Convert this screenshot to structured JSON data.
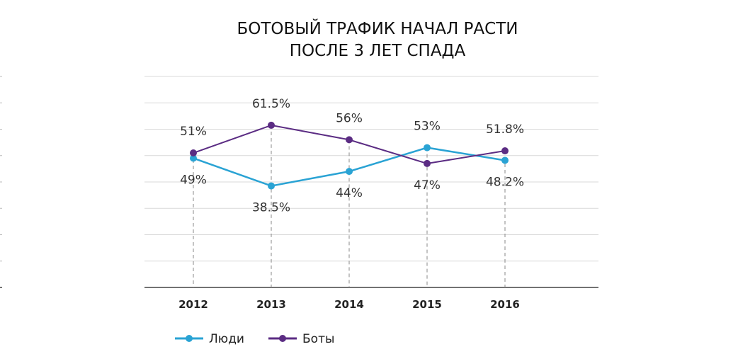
{
  "chart_data": {
    "type": "line",
    "title": [
      "БОТОВЫЙ ТРАФИК НАЧАЛ РАСТИ",
      "ПОСЛЕ 3 ЛЕТ СПАДА"
    ],
    "xlabel": "",
    "ylabel": "",
    "categories": [
      "2012",
      "2013",
      "2014",
      "2015",
      "2016"
    ],
    "ylim": [
      0,
      80
    ],
    "grid": true,
    "legend_placement": "bottom-left",
    "series": [
      {
        "name": "Люди",
        "color": "#2aa3d4",
        "values": [
          49,
          38.5,
          44,
          53,
          48.2
        ],
        "labels": [
          "49%",
          "38.5%",
          "44%",
          "53%",
          "48.2%"
        ]
      },
      {
        "name": "Боты",
        "color": "#5b2c83",
        "values": [
          51,
          61.5,
          56,
          47,
          51.8
        ],
        "labels": [
          "51%",
          "61.5%",
          "56%",
          "47%",
          "51.8%"
        ]
      }
    ]
  }
}
